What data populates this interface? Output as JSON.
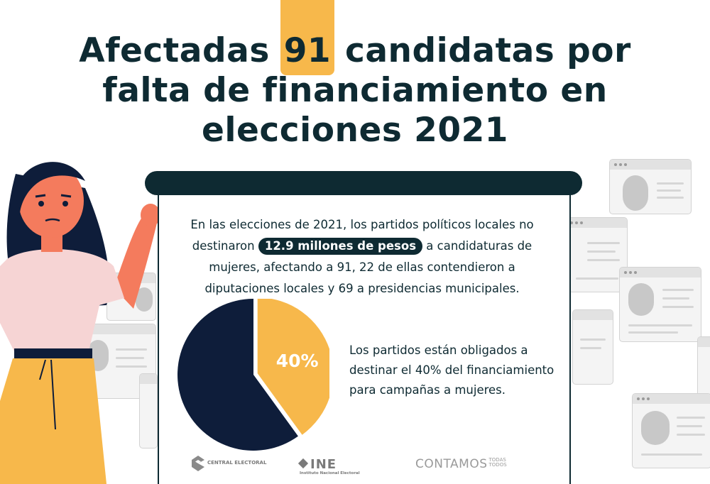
{
  "title": {
    "line1_a": "Afectadas",
    "line1_num": "91",
    "line1_b": "candidatas por",
    "line2": "falta de financiamiento en",
    "line3": "elecciones 2021"
  },
  "paragraph": {
    "part1": "En las elecciones de 2021, los partidos políticos locales no destinaron",
    "highlight": "12.9 millones de pesos",
    "part2": "a candidaturas de mujeres, afectando a 91, 22 de ellas contendieron a diputaciones locales y 69 a presidencias municipales."
  },
  "chart_data": {
    "type": "pie",
    "slices": [
      {
        "label": "40%",
        "value": 40,
        "color": "#f7b84b"
      },
      {
        "value": 60,
        "color": "#0e1d3a"
      }
    ]
  },
  "note": "Los partidos están obligados a destinar el 40% del financiamiento para campañas a mujeres.",
  "logos": {
    "central_electoral": "CENTRAL ELECTORAL",
    "ine_main": "INE",
    "ine_sub": "Instituto Nacional Electoral",
    "contamos_main": "CONTAMOS",
    "contamos_top": "TODAS",
    "contamos_bottom": "TODOS"
  },
  "colors": {
    "accent": "#f7b84b",
    "dark": "#0e2a32",
    "navy": "#0e1d3a"
  }
}
